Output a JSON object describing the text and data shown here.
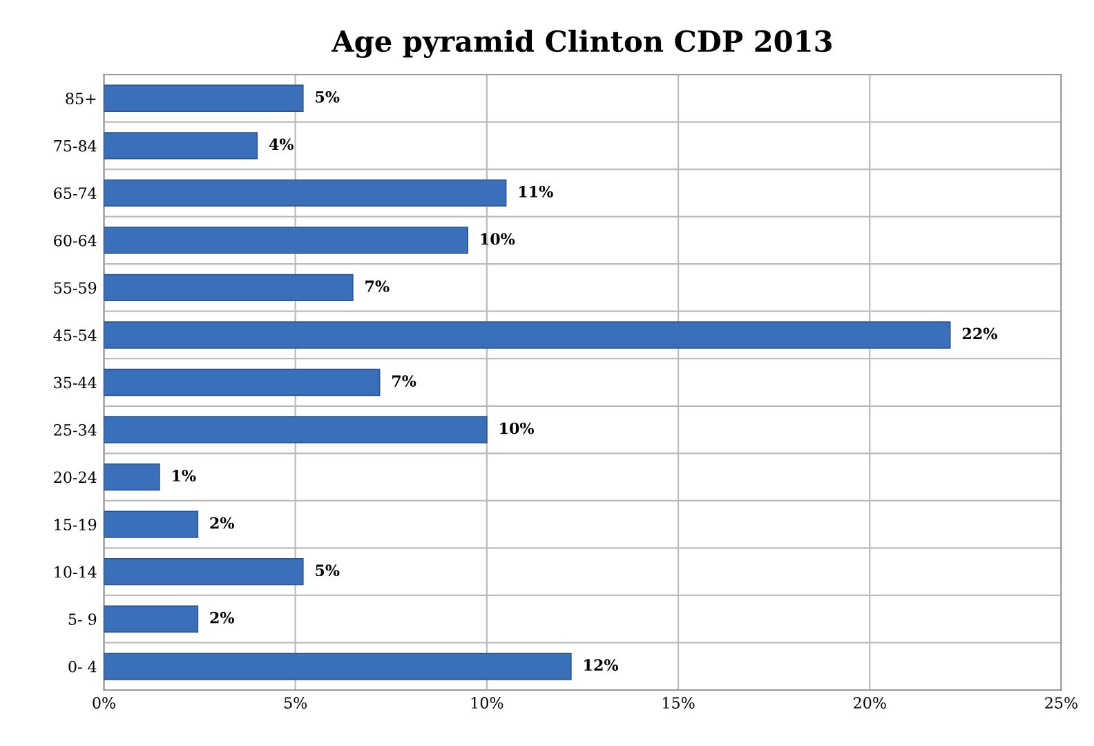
{
  "chart_data": {
    "type": "bar",
    "orientation": "horizontal",
    "title": "Age pyramid Clinton CDP 2013",
    "categories": [
      "85+",
      "75-84",
      "65-74",
      "60-64",
      "55-59",
      "45-54",
      "35-44",
      "25-34",
      "20-24",
      "15-19",
      "10-14",
      "5- 9",
      "0- 4"
    ],
    "values": [
      5.2,
      4.0,
      10.5,
      9.5,
      6.5,
      22.1,
      7.2,
      10.0,
      1.45,
      2.45,
      5.2,
      2.45,
      12.2
    ],
    "value_labels": [
      "5%",
      "4%",
      "11%",
      "10%",
      "7%",
      "22%",
      "7%",
      "10%",
      "1%",
      "2%",
      "5%",
      "2%",
      "12%"
    ],
    "color": "#3a70ba",
    "xlim": [
      0,
      25
    ],
    "xticks": [
      {
        "value": 0,
        "label": "0%"
      },
      {
        "value": 5,
        "label": "5%"
      },
      {
        "value": 10,
        "label": "10%"
      },
      {
        "value": 15,
        "label": "15%"
      },
      {
        "value": 20,
        "label": "20%"
      },
      {
        "value": 25,
        "label": "25%"
      }
    ],
    "grid": true
  }
}
